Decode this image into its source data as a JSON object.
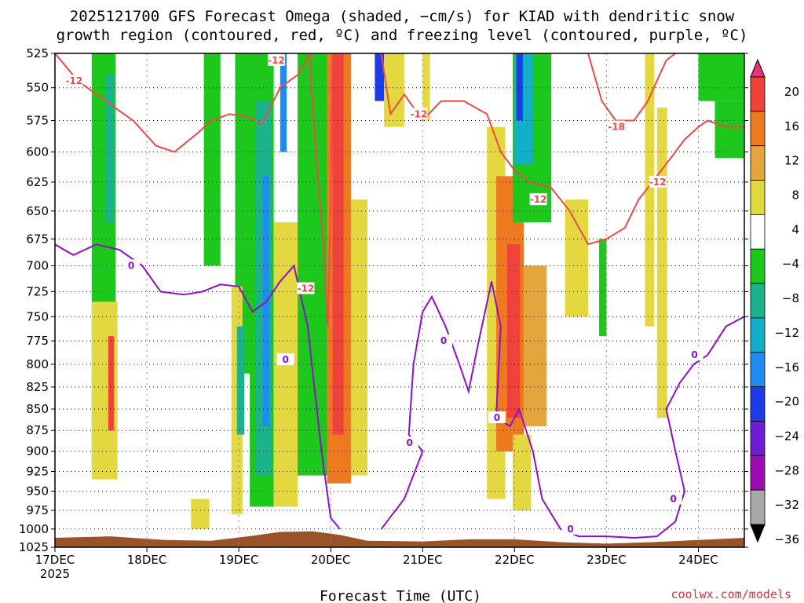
{
  "chart_data": {
    "type": "heatmap",
    "title_line1": "2025121700 GFS Forecast Omega (shaded, −cm/s) for KIAD with dendritic snow",
    "title_line2": "growth region (contoured, red, ºC) and freezing level (contoured, purple, ºC)",
    "xlabel": "Forecast Time (UTC)",
    "credit": "coolwx.com/models",
    "x_ticks": [
      "17DEC",
      "18DEC",
      "19DEC",
      "20DEC",
      "21DEC",
      "22DEC",
      "23DEC",
      "24DEC"
    ],
    "x_tick_year": "2025",
    "xlim": [
      0,
      7.5
    ],
    "y_ticks": [
      "525",
      "550",
      "575",
      "600",
      "625",
      "650",
      "675",
      "700",
      "725",
      "750",
      "775",
      "800",
      "825",
      "850",
      "875",
      "900",
      "925",
      "950",
      "975",
      "1000",
      "1025"
    ],
    "ylim": [
      525,
      1025
    ],
    "y_scale": "log",
    "grid": true,
    "colorbar": {
      "labels": [
        "20",
        "16",
        "12",
        "8",
        "4",
        "−4",
        "−8",
        "−12",
        "−16",
        "−20",
        "−24",
        "−28",
        "−32",
        "−36"
      ],
      "colors": [
        "#e8327a",
        "#f0423a",
        "#ee7a20",
        "#e2a63c",
        "#e4d840",
        "#ffffff",
        "#1bc81b",
        "#1ab38c",
        "#12b0c8",
        "#1e8cf0",
        "#1e3ce6",
        "#6e1ed2",
        "#a00ab4",
        "#a8a8a8",
        "#000000"
      ]
    },
    "shaded_regions": [
      {
        "x": [
          0.4,
          0.66
        ],
        "p": [
          525,
          920
        ],
        "color": "#1bc81b"
      },
      {
        "x": [
          0.55,
          0.64
        ],
        "p": [
          540,
          660
        ],
        "color": "#1ab38c"
      },
      {
        "x": [
          1.48,
          1.68
        ],
        "p": [
          960,
          1000
        ],
        "color": "#e4d840"
      },
      {
        "x": [
          1.62,
          1.8
        ],
        "p": [
          525,
          700
        ],
        "color": "#1bc81b"
      },
      {
        "x": [
          0.4,
          0.68
        ],
        "p": [
          735,
          935
        ],
        "color": "#e4d840"
      },
      {
        "x": [
          0.58,
          0.64
        ],
        "p": [
          770,
          875
        ],
        "color": "#f0423a"
      },
      {
        "x": [
          1.96,
          2.14
        ],
        "p": [
          525,
          810
        ],
        "color": "#1bc81b"
      },
      {
        "x": [
          1.92,
          2.04
        ],
        "p": [
          720,
          980
        ],
        "color": "#e4d840"
      },
      {
        "x": [
          1.98,
          2.06
        ],
        "p": [
          760,
          880
        ],
        "color": "#1ab38c"
      },
      {
        "x": [
          2.12,
          2.38
        ],
        "p": [
          525,
          970
        ],
        "color": "#1bc81b"
      },
      {
        "x": [
          2.18,
          2.36
        ],
        "p": [
          560,
          930
        ],
        "color": "#1ab38c"
      },
      {
        "x": [
          2.26,
          2.33
        ],
        "p": [
          620,
          870
        ],
        "color": "#1e8cf0"
      },
      {
        "x": [
          2.38,
          2.64
        ],
        "p": [
          660,
          970
        ],
        "color": "#e4d840"
      },
      {
        "x": [
          2.45,
          2.52
        ],
        "p": [
          525,
          600
        ],
        "color": "#1e8cf0"
      },
      {
        "x": [
          2.64,
          2.96
        ],
        "p": [
          525,
          930
        ],
        "color": "#1bc81b"
      },
      {
        "x": [
          2.96,
          3.22
        ],
        "p": [
          525,
          940
        ],
        "color": "#ee7a20"
      },
      {
        "x": [
          3.02,
          3.14
        ],
        "p": [
          525,
          880
        ],
        "color": "#f0423a"
      },
      {
        "x": [
          3.22,
          3.4
        ],
        "p": [
          640,
          930
        ],
        "color": "#e4d840"
      },
      {
        "x": [
          3.48,
          3.58
        ],
        "p": [
          525,
          560
        ],
        "color": "#1e3ce6"
      },
      {
        "x": [
          3.58,
          3.8
        ],
        "p": [
          525,
          580
        ],
        "color": "#e4d840"
      },
      {
        "x": [
          4.0,
          4.08
        ],
        "p": [
          525,
          575
        ],
        "color": "#e4d840"
      },
      {
        "x": [
          4.7,
          4.9
        ],
        "p": [
          580,
          960
        ],
        "color": "#e4d840"
      },
      {
        "x": [
          4.8,
          5.1
        ],
        "p": [
          620,
          900
        ],
        "color": "#ee7a20"
      },
      {
        "x": [
          4.92,
          5.06
        ],
        "p": [
          680,
          860
        ],
        "color": "#f0423a"
      },
      {
        "x": [
          5.1,
          5.35
        ],
        "p": [
          700,
          870
        ],
        "color": "#e2a63c"
      },
      {
        "x": [
          4.98,
          5.18
        ],
        "p": [
          880,
          975
        ],
        "color": "#e4d840"
      },
      {
        "x": [
          4.98,
          5.4
        ],
        "p": [
          525,
          660
        ],
        "color": "#1bc81b"
      },
      {
        "x": [
          5.0,
          5.2
        ],
        "p": [
          525,
          610
        ],
        "color": "#12b0c8"
      },
      {
        "x": [
          5.02,
          5.09
        ],
        "p": [
          525,
          575
        ],
        "color": "#1e3ce6"
      },
      {
        "x": [
          5.55,
          5.8
        ],
        "p": [
          640,
          750
        ],
        "color": "#e4d840"
      },
      {
        "x": [
          5.92,
          6.0
        ],
        "p": [
          675,
          770
        ],
        "color": "#1bc81b"
      },
      {
        "x": [
          6.42,
          6.52
        ],
        "p": [
          525,
          760
        ],
        "color": "#e4d840"
      },
      {
        "x": [
          6.55,
          6.66
        ],
        "p": [
          565,
          860
        ],
        "color": "#e4d840"
      },
      {
        "x": [
          7.0,
          7.5
        ],
        "p": [
          525,
          560
        ],
        "color": "#1bc81b"
      },
      {
        "x": [
          7.18,
          7.5
        ],
        "p": [
          560,
          605
        ],
        "color": "#1bc81b"
      }
    ],
    "terrain_color": "#9a5228",
    "contours": [
      {
        "name": "-12",
        "color": "#f04a46",
        "labels": [
          "-12",
          "-12",
          "-12",
          "-12",
          "-12",
          "-12",
          "-18"
        ],
        "points": [
          [
            0.0,
            525
          ],
          [
            0.25,
            545
          ],
          [
            0.55,
            560
          ],
          [
            0.85,
            575
          ],
          [
            1.1,
            595
          ],
          [
            1.3,
            600
          ],
          [
            1.55,
            585
          ],
          [
            1.7,
            575
          ],
          [
            1.9,
            570
          ],
          [
            2.1,
            572
          ],
          [
            2.25,
            578
          ],
          [
            2.45,
            550
          ],
          [
            2.65,
            540
          ],
          [
            2.78,
            525
          ]
        ]
      },
      {
        "name": "-12b",
        "color": "#f04a46",
        "points": [
          [
            2.78,
            525
          ],
          [
            2.78,
            540
          ],
          [
            2.85,
            610
          ],
          [
            2.92,
            680
          ],
          [
            2.97,
            760
          ],
          [
            3.0,
            640
          ],
          [
            3.02,
            525
          ]
        ]
      },
      {
        "name": "-12c",
        "color": "#f04a46",
        "points": [
          [
            3.55,
            525
          ],
          [
            3.65,
            570
          ],
          [
            3.8,
            555
          ],
          [
            4.0,
            575
          ],
          [
            4.2,
            560
          ],
          [
            4.45,
            560
          ],
          [
            4.7,
            570
          ],
          [
            4.85,
            600
          ],
          [
            5.0,
            615
          ],
          [
            5.15,
            625
          ],
          [
            5.4,
            630
          ],
          [
            5.6,
            650
          ],
          [
            5.8,
            680
          ],
          [
            6.0,
            675
          ],
          [
            6.2,
            665
          ],
          [
            6.35,
            640
          ],
          [
            6.5,
            625
          ],
          [
            6.7,
            605
          ],
          [
            6.85,
            590
          ],
          [
            7.0,
            580
          ],
          [
            7.1,
            575
          ],
          [
            7.3,
            580
          ],
          [
            7.5,
            580
          ]
        ]
      },
      {
        "name": "-18",
        "color": "#f04a46",
        "points": [
          [
            5.8,
            525
          ],
          [
            5.95,
            560
          ],
          [
            6.1,
            575
          ],
          [
            6.3,
            575
          ],
          [
            6.45,
            560
          ],
          [
            6.65,
            530
          ],
          [
            6.75,
            525
          ]
        ]
      },
      {
        "name": "0",
        "color": "#9010c8",
        "labels": [
          "0",
          "0",
          "0",
          "0",
          "0",
          "0",
          "0"
        ],
        "points": [
          [
            0.0,
            680
          ],
          [
            0.2,
            690
          ],
          [
            0.45,
            680
          ],
          [
            0.7,
            685
          ],
          [
            0.95,
            700
          ],
          [
            1.15,
            725
          ],
          [
            1.4,
            728
          ],
          [
            1.6,
            725
          ],
          [
            1.8,
            718
          ],
          [
            2.0,
            720
          ],
          [
            2.15,
            745
          ],
          [
            2.3,
            735
          ],
          [
            2.45,
            715
          ],
          [
            2.6,
            700
          ],
          [
            2.75,
            760
          ],
          [
            2.9,
            900
          ],
          [
            3.0,
            985
          ],
          [
            3.1,
            1000
          ]
        ]
      },
      {
        "name": "0b",
        "color": "#9010c8",
        "points": [
          [
            3.55,
            1000
          ],
          [
            3.8,
            960
          ],
          [
            4.0,
            900
          ],
          [
            3.85,
            880
          ],
          [
            3.9,
            800
          ],
          [
            4.0,
            745
          ],
          [
            4.1,
            730
          ],
          [
            4.25,
            760
          ],
          [
            4.4,
            800
          ],
          [
            4.5,
            830
          ],
          [
            4.6,
            780
          ],
          [
            4.75,
            715
          ],
          [
            4.85,
            760
          ],
          [
            4.8,
            860
          ],
          [
            4.95,
            870
          ],
          [
            5.05,
            850
          ],
          [
            5.2,
            900
          ],
          [
            5.3,
            960
          ],
          [
            5.5,
            1000
          ],
          [
            5.7,
            1010
          ],
          [
            6.0,
            1010
          ],
          [
            6.3,
            1012
          ],
          [
            6.55,
            1010
          ],
          [
            6.75,
            990
          ],
          [
            6.85,
            950
          ],
          [
            6.75,
            900
          ],
          [
            6.65,
            850
          ],
          [
            6.8,
            820
          ],
          [
            6.95,
            800
          ],
          [
            7.1,
            790
          ],
          [
            7.3,
            760
          ],
          [
            7.5,
            750
          ]
        ]
      }
    ],
    "contour_label_positions": [
      {
        "text": "-12",
        "x": 0.2,
        "p": 545,
        "color": "#f04a46"
      },
      {
        "text": "-12",
        "x": 2.4,
        "p": 530,
        "color": "#f04a46"
      },
      {
        "text": "-12",
        "x": 2.72,
        "p": 722,
        "color": "#f04a46"
      },
      {
        "text": "-12",
        "x": 3.95,
        "p": 570,
        "color": "#f04a46"
      },
      {
        "text": "-12",
        "x": 5.25,
        "p": 640,
        "color": "#f04a46"
      },
      {
        "text": "-18",
        "x": 6.1,
        "p": 580,
        "color": "#f04a46"
      },
      {
        "text": "-12",
        "x": 6.55,
        "p": 625,
        "color": "#f04a46"
      },
      {
        "text": "0",
        "x": 0.82,
        "p": 700,
        "color": "#9010c8"
      },
      {
        "text": "0",
        "x": 2.5,
        "p": 795,
        "color": "#9010c8"
      },
      {
        "text": "0",
        "x": 4.22,
        "p": 775,
        "color": "#9010c8"
      },
      {
        "text": "0",
        "x": 4.8,
        "p": 860,
        "color": "#9010c8"
      },
      {
        "text": "0",
        "x": 3.85,
        "p": 890,
        "color": "#9010c8"
      },
      {
        "text": "0",
        "x": 5.6,
        "p": 1000,
        "color": "#9010c8"
      },
      {
        "text": "0",
        "x": 6.72,
        "p": 960,
        "color": "#9010c8"
      },
      {
        "text": "0",
        "x": 6.95,
        "p": 790,
        "color": "#9010c8"
      }
    ]
  }
}
